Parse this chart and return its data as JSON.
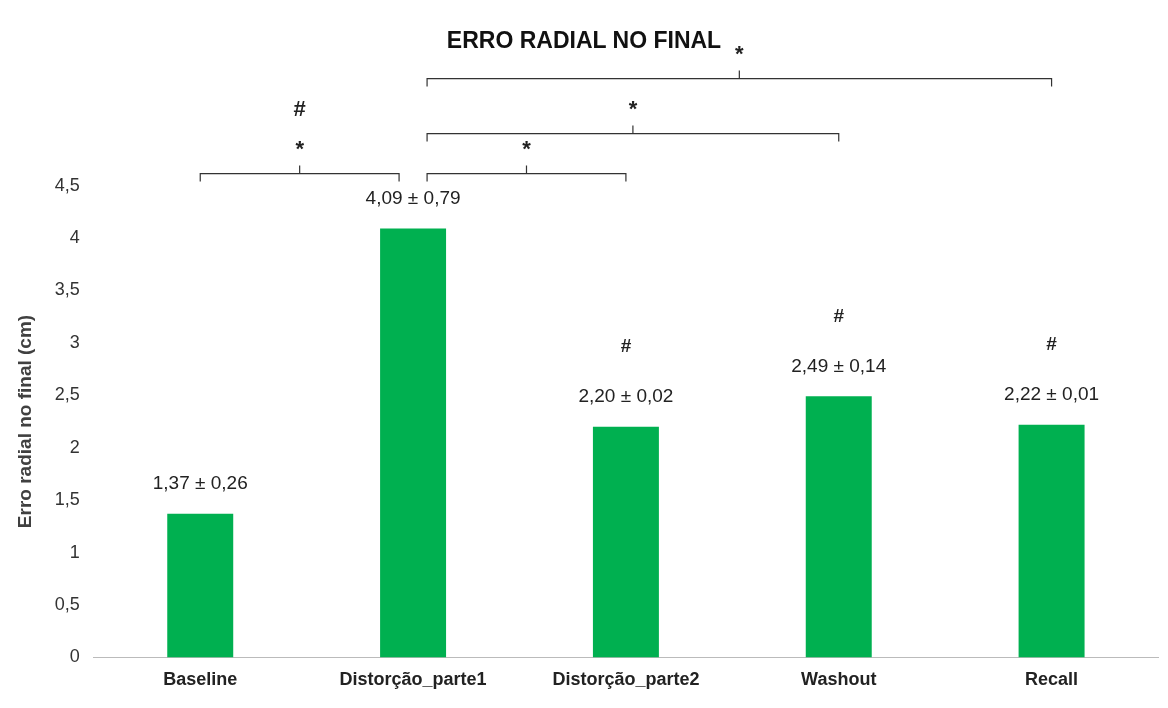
{
  "chart_data": {
    "type": "bar",
    "title": "ERRO RADIAL NO FINAL",
    "ylabel": "Erro radial no final (cm)",
    "categories": [
      "Baseline",
      "Distorção_parte1",
      "Distorção_parte2",
      "Washout",
      "Recall"
    ],
    "values": [
      1.37,
      4.09,
      2.2,
      2.49,
      2.22
    ],
    "color": "#00b050",
    "value_labels": [
      "1,37 ± 0,26",
      "4,09 ± 0,79",
      "2,20 ± 0,02",
      "2,49 ± 0,14",
      "2,22 ± 0,01"
    ],
    "ylim": [
      0,
      4.5
    ],
    "yticks": [
      0,
      {
        "value": 0.5,
        "label": "0,5"
      },
      1,
      {
        "value": 1.5,
        "label": "1,5"
      },
      2,
      {
        "value": 2.5,
        "label": "2,5"
      },
      3,
      {
        "value": 3.5,
        "label": "3,5"
      },
      4,
      {
        "value": 4.5,
        "label": "4,5"
      }
    ],
    "grid": false,
    "legend": false,
    "annotations": [
      "#",
      "#",
      "#",
      "*",
      "#",
      "*",
      "*",
      "*"
    ]
  }
}
